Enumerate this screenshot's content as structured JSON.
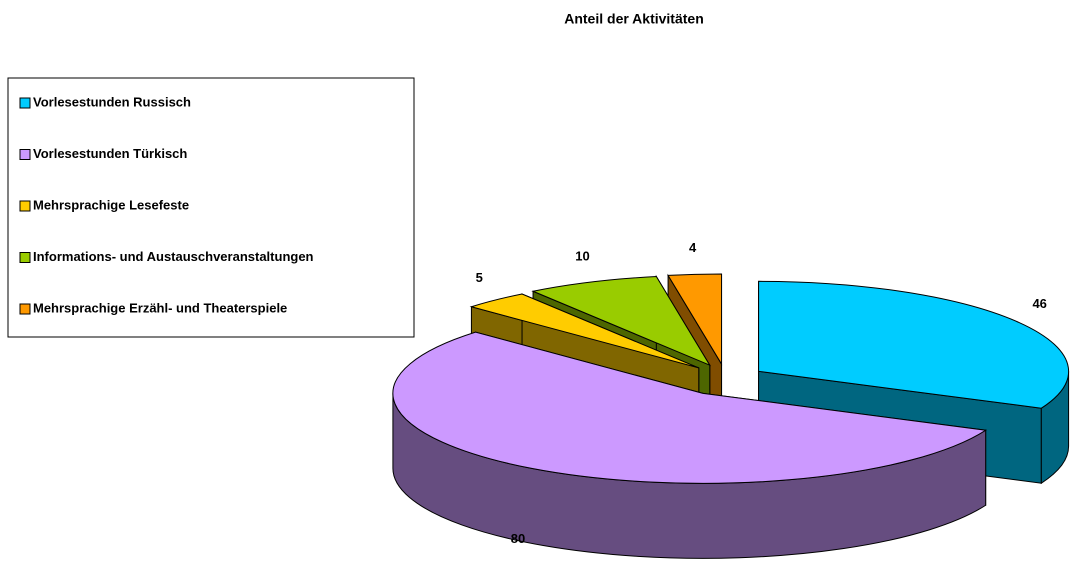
{
  "chart_data": {
    "type": "pie3d",
    "title": "Anteil der Aktivitäten",
    "categories": [
      "Vorlesestunden  Russisch",
      "Vorlesestunden  Türkisch",
      "Mehrsprachige Lesefeste",
      "Informations- und Austauschveranstaltungen",
      "Mehrsprachige Erzähl- und Theaterspiele"
    ],
    "values": [
      46,
      80,
      5,
      10,
      4
    ],
    "colors": [
      "#00ccff",
      "#cc99ff",
      "#ffcc00",
      "#99cc00",
      "#ff9900"
    ],
    "legend": "left"
  }
}
